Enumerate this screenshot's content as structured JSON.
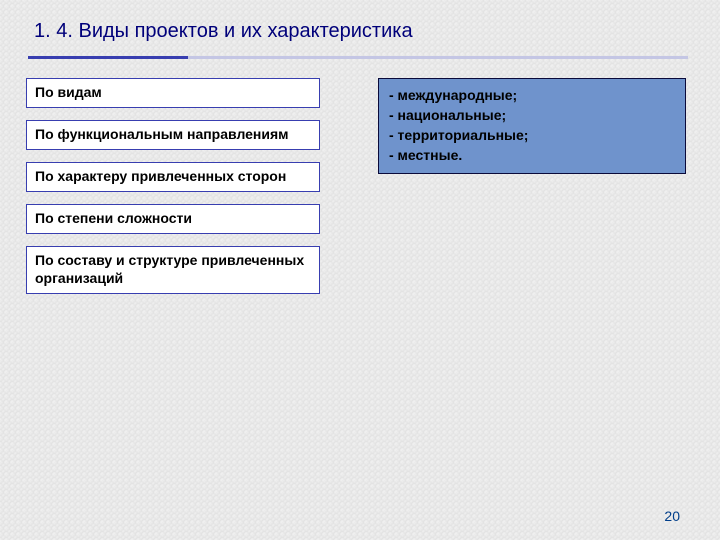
{
  "title": "1. 4. Виды проектов и их характеристика",
  "title_color": "#00007a",
  "categories": [
    {
      "label": "По видам"
    },
    {
      "label": "По функциональным направлениям"
    },
    {
      "label": "По характеру привлеченных сторон"
    },
    {
      "label": "По степени сложности"
    },
    {
      "label": "По составу и структуре привлеченных организаций"
    }
  ],
  "category_box": {
    "border_color": "#383eb0",
    "background": "#ffffff",
    "font_size": 14
  },
  "detail_box": {
    "items": [
      "- международные;",
      "- национальные;",
      "- территориальные;",
      "- местные."
    ],
    "background": "#6f93cc",
    "border_color": "#0a0a3a",
    "text_color": "#000000"
  },
  "page_number": "20",
  "page_number_color": "#003e8a"
}
